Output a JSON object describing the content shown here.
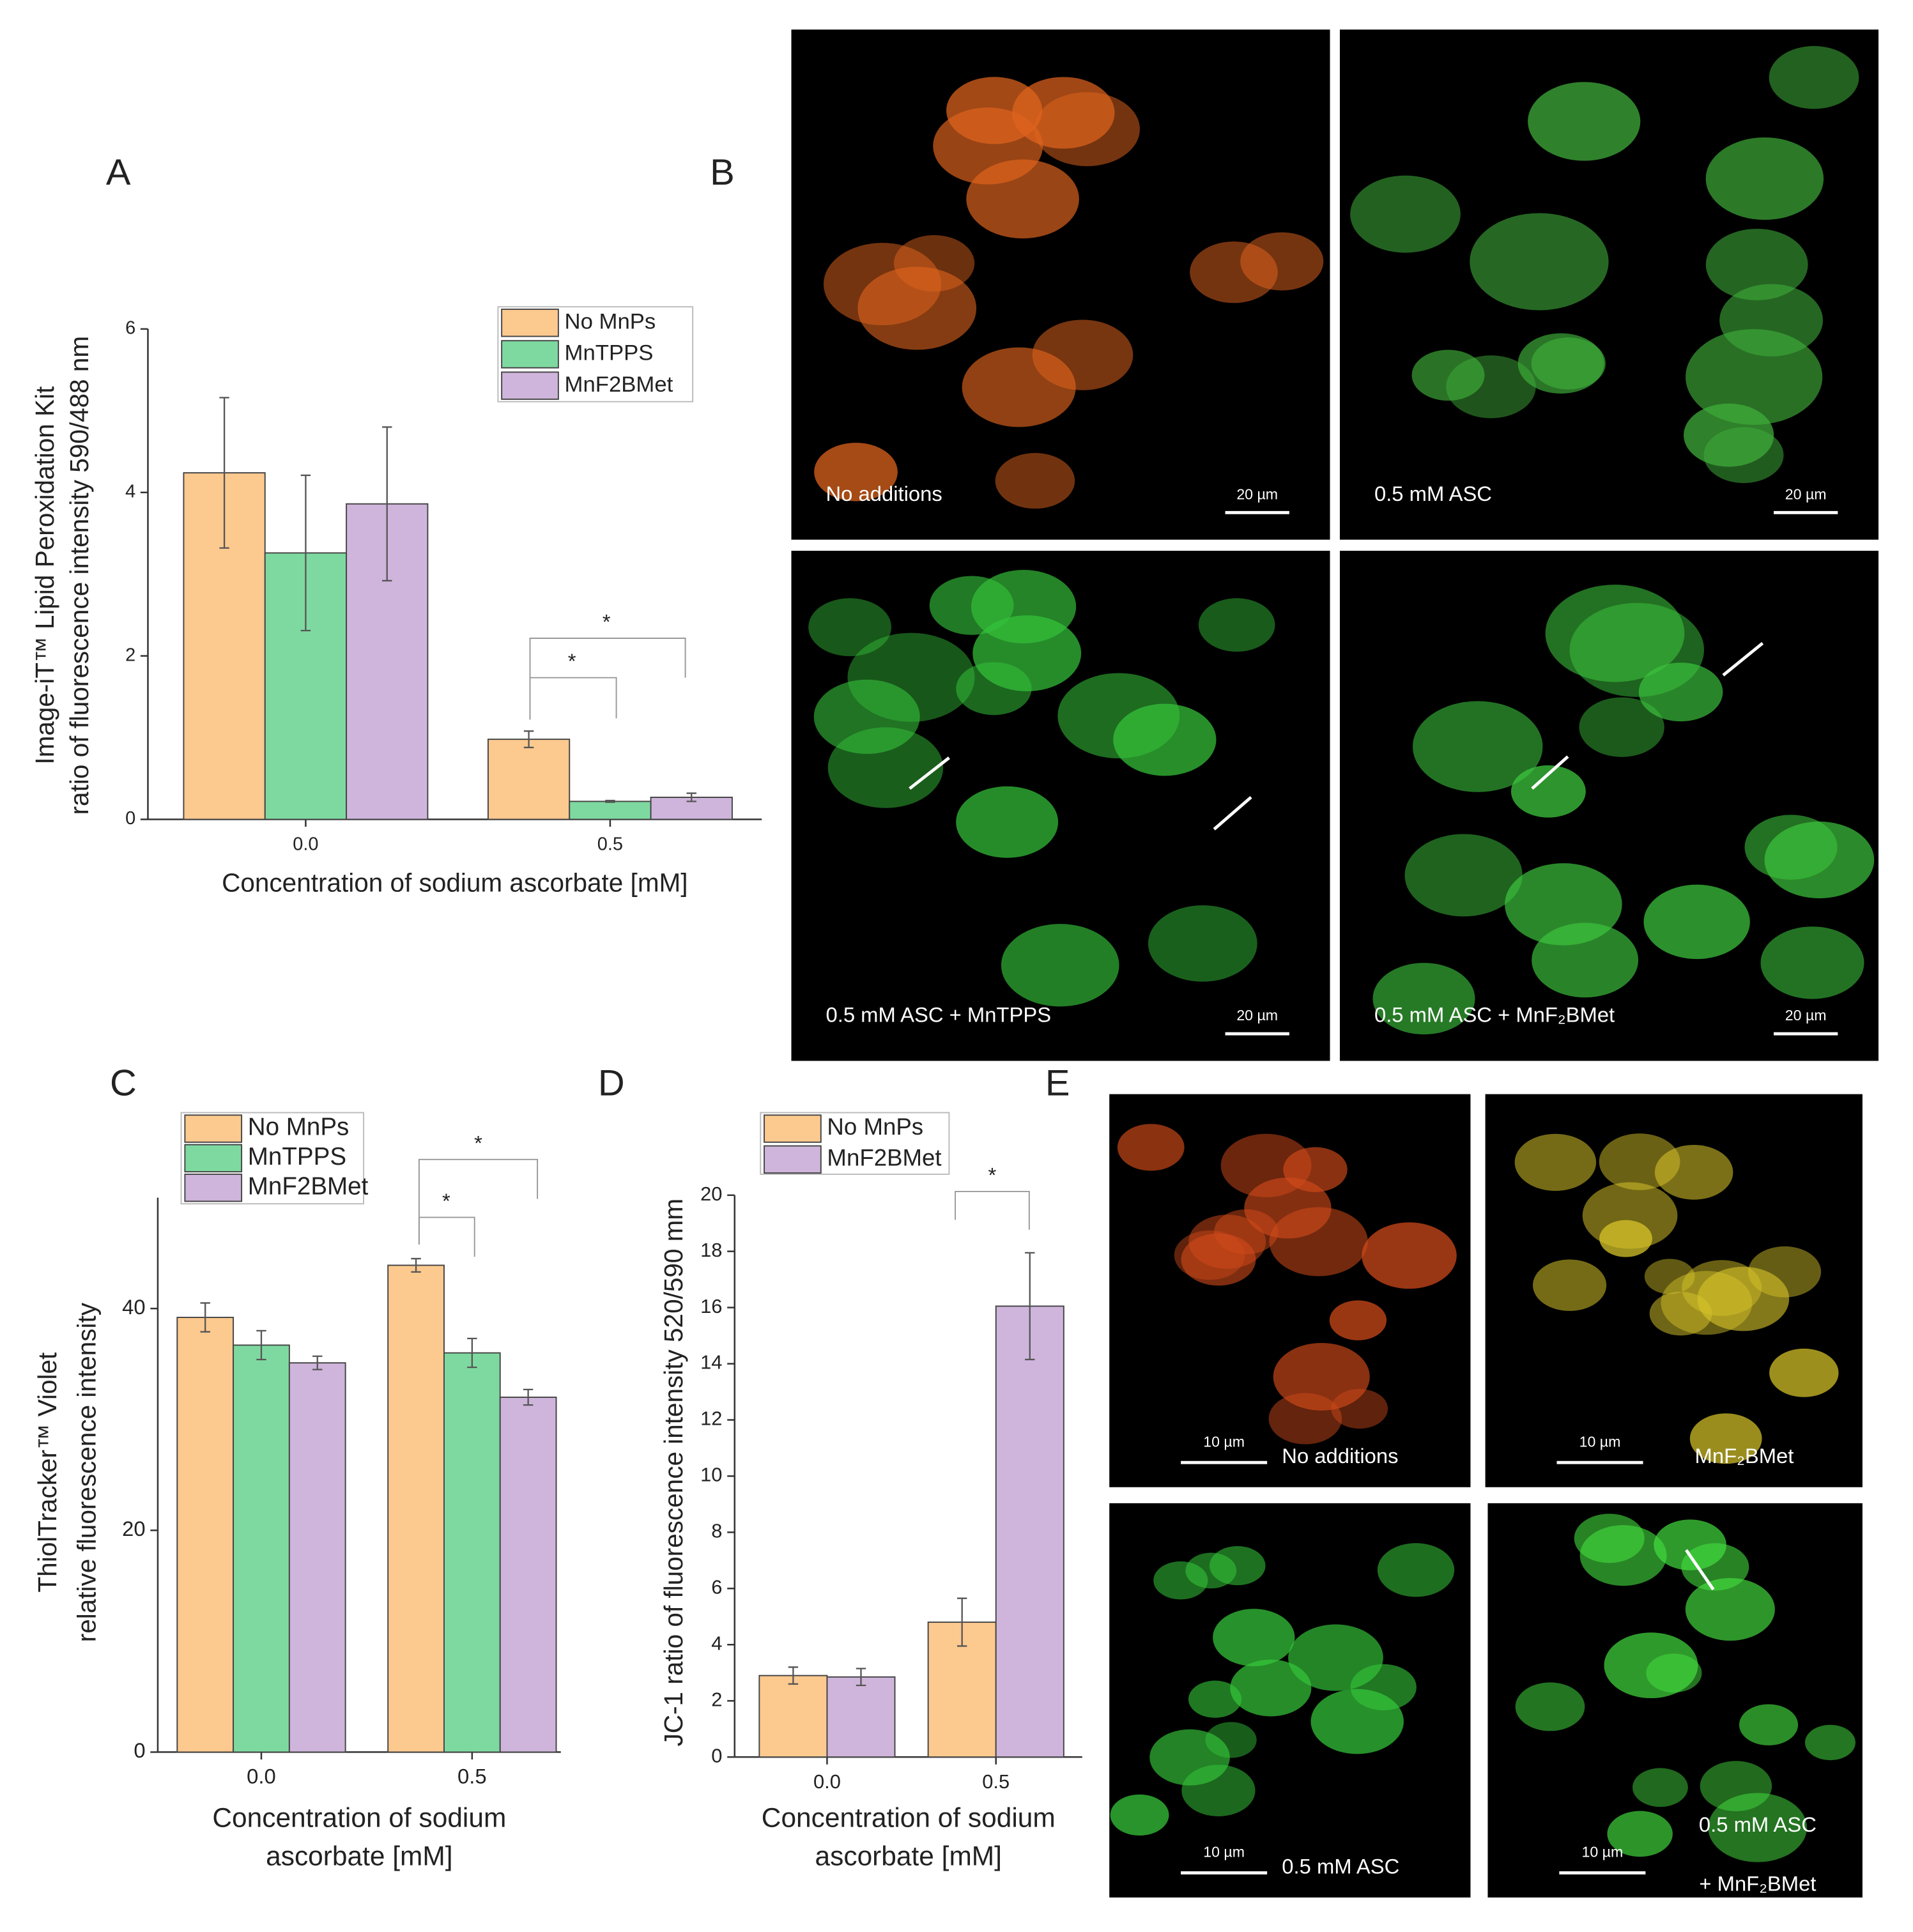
{
  "panel_labels": [
    "A",
    "B",
    "C",
    "D",
    "E"
  ],
  "chart_data": [
    {
      "type": "bar",
      "ylabel": [
        "Image-iT™ Lipid Peroxidation Kit",
        "ratio of fluorescence intensity 590/488 nm"
      ],
      "xlabel": [
        "Concentration of sodium ascorbate [mM]"
      ],
      "categories": [
        "0.0",
        "0.5"
      ],
      "ylim": [
        0,
        6
      ],
      "yticks": [
        0,
        2,
        4,
        6
      ],
      "series": [
        {
          "name": "No MnPs",
          "color": "#fcc98f",
          "values": [
            4.24,
            0.98
          ],
          "errors": [
            0.92,
            0.1
          ]
        },
        {
          "name": "MnTPPS",
          "color": "#7ed9a0",
          "values": [
            3.26,
            0.22
          ],
          "errors": [
            0.95,
            0.01
          ]
        },
        {
          "name": "MnF2BMet",
          "color": "#cfb5dc",
          "values": [
            3.86,
            0.27
          ],
          "errors": [
            0.94,
            0.05
          ]
        }
      ],
      "annotations": [
        "*",
        "*"
      ]
    },
    {
      "type": "bar",
      "ylabel": [
        "ThiolTracker™ Violet",
        "relative fluorescence intensity"
      ],
      "xlabel": [
        "Concentration of sodium",
        "ascorbate [mM]"
      ],
      "categories": [
        "0.0",
        "0.5"
      ],
      "ylim": [
        0,
        50
      ],
      "yticks": [
        0,
        20,
        40
      ],
      "series": [
        {
          "name": "No MnPs",
          "color": "#fcc98f",
          "values": [
            39.2,
            43.9
          ],
          "errors": [
            1.3,
            0.6
          ]
        },
        {
          "name": "MnTPPS",
          "color": "#7ed9a0",
          "values": [
            36.7,
            36.0
          ],
          "errors": [
            1.3,
            1.3
          ]
        },
        {
          "name": "MnF2BMet",
          "color": "#cfb5dc",
          "values": [
            35.1,
            32.0
          ],
          "errors": [
            0.6,
            0.7
          ]
        }
      ],
      "annotations": [
        "*",
        "*"
      ]
    },
    {
      "type": "bar",
      "ylabel": [
        "JC-1 ratio of fluorescence intensity 520/590 mm"
      ],
      "xlabel": [
        "Concentration of sodium",
        "ascorbate [mM]"
      ],
      "categories": [
        "0.0",
        "0.5"
      ],
      "ylim": [
        0,
        20
      ],
      "yticks": [
        0,
        2,
        4,
        6,
        8,
        10,
        12,
        14,
        16,
        18,
        20
      ],
      "series": [
        {
          "name": "No MnPs",
          "color": "#fcc98f",
          "values": [
            2.9,
            4.8
          ],
          "errors": [
            0.3,
            0.85
          ]
        },
        {
          "name": "MnF2BMet",
          "color": "#cfb5dc",
          "values": [
            2.85,
            16.05
          ],
          "errors": [
            0.3,
            1.9
          ]
        }
      ],
      "annotations": [
        "*"
      ]
    }
  ],
  "images_B": [
    {
      "label": [
        "No additions"
      ],
      "scale_bar": "20 µm"
    },
    {
      "label": [
        "0.5 mM ASC"
      ],
      "scale_bar": "20 µm"
    },
    {
      "label": [
        "0.5 mM ASC + MnTPPS"
      ],
      "scale_bar": "20 µm"
    },
    {
      "label": [
        "0.5 mM ASC + MnF₂BMet"
      ],
      "scale_bar": "20 µm"
    }
  ],
  "images_E": [
    {
      "label": [
        "No  additions"
      ],
      "scale_bar": "10 µm"
    },
    {
      "label": [
        "MnF₂BMet"
      ],
      "scale_bar": "10 µm"
    },
    {
      "label": [
        "0.5 mM ASC"
      ],
      "scale_bar": "10 µm"
    },
    {
      "label": [
        "0.5 mM ASC",
        "+ MnF₂BMet"
      ],
      "scale_bar": "10 µm"
    }
  ]
}
